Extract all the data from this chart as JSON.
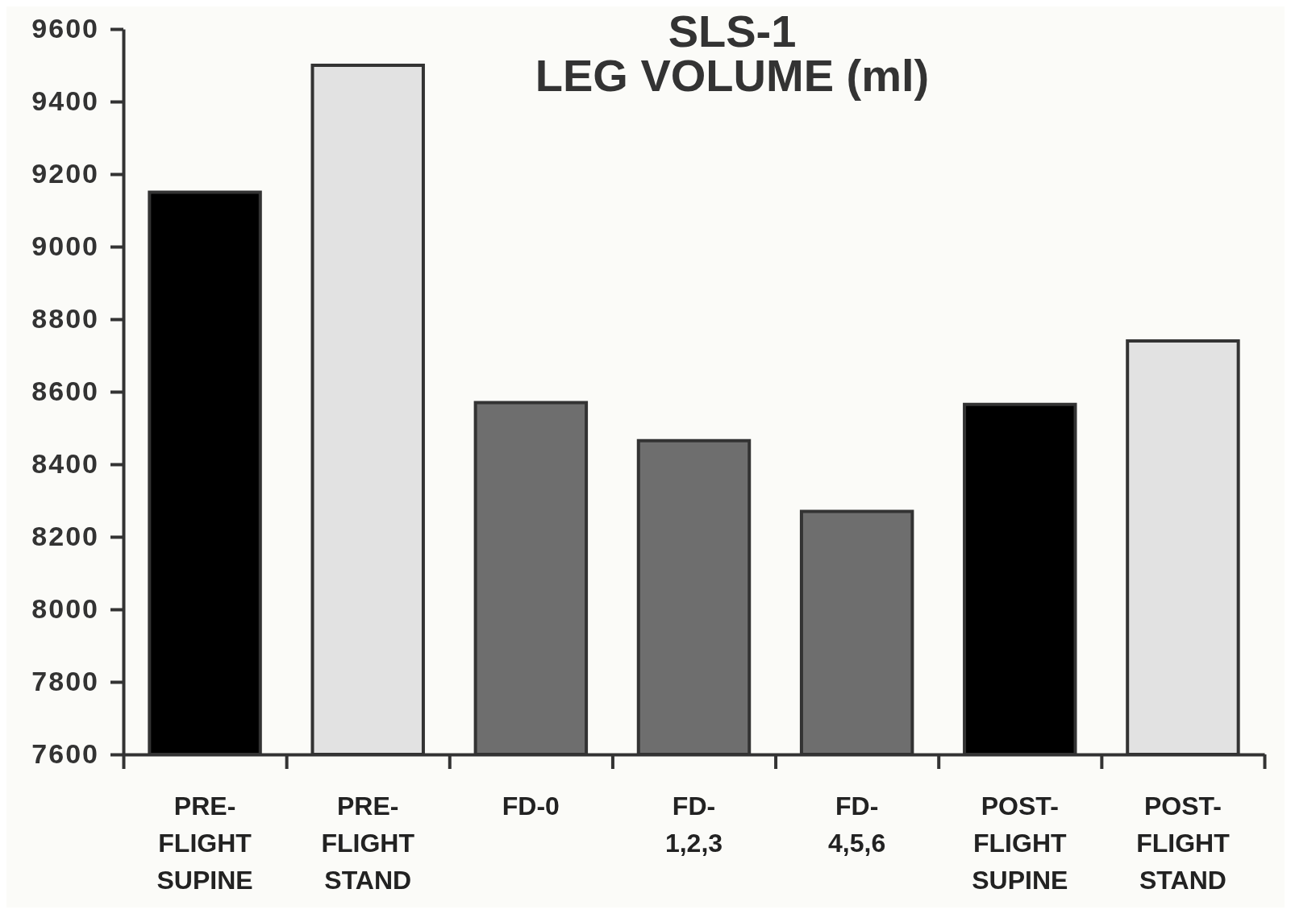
{
  "chart_data": {
    "type": "bar",
    "title": "SLS-1",
    "subtitle": "LEG VOLUME (ml)",
    "categories": [
      "PRE-\nFLIGHT\nSUPINE",
      "PRE-\nFLIGHT\nSTAND",
      "FD-0",
      "FD-\n1,2,3",
      "FD-\n4,5,6",
      "POST-\nFLIGHT\nSUPINE",
      "POST-\nFLIGHT\nSTAND"
    ],
    "values": [
      9150,
      9500,
      8570,
      8465,
      8270,
      8565,
      8740
    ],
    "colors": [
      "#000000",
      "#e2e2e2",
      "#6e6e6e",
      "#6e6e6e",
      "#6e6e6e",
      "#000000",
      "#e2e2e2"
    ],
    "ylim": [
      7600,
      9600
    ],
    "yticks": [
      7600,
      7800,
      8000,
      8200,
      8400,
      8600,
      8800,
      9000,
      9200,
      9400,
      9600
    ],
    "grid": false
  }
}
